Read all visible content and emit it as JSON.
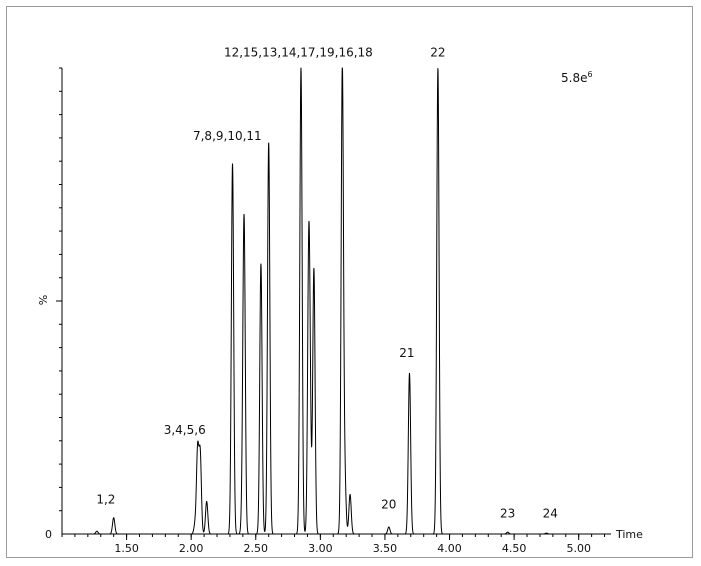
{
  "chart_data": {
    "type": "line",
    "title": "",
    "xlabel": "Time",
    "ylabel": "%",
    "y_zero_label": "0",
    "scale_label": "5.8e",
    "scale_exponent": "6",
    "xlim": [
      1.0,
      5.25
    ],
    "ylim": [
      0,
      100
    ],
    "x_ticks": [
      {
        "value": 1.5,
        "label": "1.50"
      },
      {
        "value": 2.0,
        "label": "2.00"
      },
      {
        "value": 2.5,
        "label": "2.50"
      },
      {
        "value": 3.0,
        "label": "3.00"
      },
      {
        "value": 3.5,
        "label": "3.50"
      },
      {
        "value": 4.0,
        "label": "4.00"
      },
      {
        "value": 4.5,
        "label": "4.50"
      },
      {
        "value": 5.0,
        "label": "5.00"
      }
    ],
    "series": [
      {
        "peaks": [
          {
            "x": 1.27,
            "y": 0.6
          },
          {
            "x": 1.4,
            "y": 3.5
          },
          {
            "x": 2.03,
            "y": 2.0
          },
          {
            "x": 2.05,
            "y": 18.0
          },
          {
            "x": 2.07,
            "y": 17.0
          },
          {
            "x": 2.12,
            "y": 7.0
          },
          {
            "x": 2.32,
            "y": 79.5
          },
          {
            "x": 2.4,
            "y": 10.0
          },
          {
            "x": 2.41,
            "y": 63.0
          },
          {
            "x": 2.54,
            "y": 58.0
          },
          {
            "x": 2.6,
            "y": 84.0
          },
          {
            "x": 2.85,
            "y": 100
          },
          {
            "x": 2.91,
            "y": 55.0
          },
          {
            "x": 2.92,
            "y": 20.0
          },
          {
            "x": 2.95,
            "y": 57.0
          },
          {
            "x": 3.17,
            "y": 100
          },
          {
            "x": 3.19,
            "y": 11.0
          },
          {
            "x": 3.23,
            "y": 8.5
          },
          {
            "x": 3.53,
            "y": 1.5
          },
          {
            "x": 3.69,
            "y": 34.5
          },
          {
            "x": 3.91,
            "y": 100
          },
          {
            "x": 4.45,
            "y": 0.4
          },
          {
            "x": 4.75,
            "y": 0.2
          }
        ]
      }
    ],
    "annotations": [
      {
        "text": "1,2",
        "x": 1.34,
        "y": 6.5
      },
      {
        "text": "3,4,5,6",
        "x": 1.95,
        "y": 21.5
      },
      {
        "text": "7,8,9,10,11",
        "x": 2.28,
        "y": 84.5
      },
      {
        "text": "12,15,13,14,17,19,16,18",
        "x": 2.83,
        "y": 102.5
      },
      {
        "text": "22",
        "x": 3.91,
        "y": 102.5
      },
      {
        "text": "21",
        "x": 3.67,
        "y": 38.0
      },
      {
        "text": "20",
        "x": 3.53,
        "y": 5.5
      },
      {
        "text": "23",
        "x": 4.45,
        "y": 3.5
      },
      {
        "text": "24",
        "x": 4.78,
        "y": 3.5
      }
    ]
  }
}
